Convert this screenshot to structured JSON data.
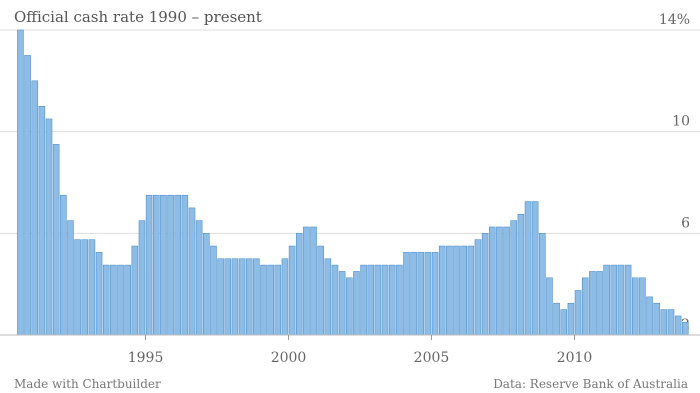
{
  "chart_data": {
    "type": "bar",
    "title": "Official cash rate 1990 – present",
    "credit": "Made with Chartbuilder",
    "source": "Data: Reserve Bank of Australia",
    "color": "#8dbde6",
    "grid": true,
    "x": [
      1990.5,
      1990.75,
      1991,
      1991.25,
      1991.5,
      1991.75,
      1992,
      1992.25,
      1992.5,
      1992.75,
      1993,
      1993.25,
      1993.5,
      1993.75,
      1994,
      1994.25,
      1994.5,
      1994.75,
      1995,
      1995.25,
      1995.5,
      1995.75,
      1996,
      1996.25,
      1996.5,
      1996.75,
      1997,
      1997.25,
      1997.5,
      1997.75,
      1998,
      1998.25,
      1998.5,
      1998.75,
      1999,
      1999.25,
      1999.5,
      1999.75,
      2000,
      2000.25,
      2000.5,
      2000.75,
      2001,
      2001.25,
      2001.5,
      2001.75,
      2002,
      2002.25,
      2002.5,
      2002.75,
      2003,
      2003.25,
      2003.5,
      2003.75,
      2004,
      2004.25,
      2004.5,
      2004.75,
      2005,
      2005.25,
      2005.5,
      2005.75,
      2006,
      2006.25,
      2006.5,
      2006.75,
      2007,
      2007.25,
      2007.5,
      2007.75,
      2008,
      2008.25,
      2008.5,
      2008.75,
      2009,
      2009.25,
      2009.5,
      2009.75,
      2010,
      2010.25,
      2010.5,
      2010.75,
      2011,
      2011.25,
      2011.5,
      2011.75,
      2012,
      2012.25,
      2012.5,
      2012.75,
      2013,
      2013.25,
      2013.5,
      2013.75
    ],
    "values": [
      14,
      13,
      12,
      11,
      10.5,
      9.5,
      7.5,
      6.5,
      5.75,
      5.75,
      5.75,
      5.25,
      4.75,
      4.75,
      4.75,
      4.75,
      5.5,
      6.5,
      7.5,
      7.5,
      7.5,
      7.5,
      7.5,
      7.5,
      7,
      6.5,
      6,
      5.5,
      5,
      5,
      5,
      5,
      5,
      5,
      4.75,
      4.75,
      4.75,
      5,
      5.5,
      6,
      6.25,
      6.25,
      5.5,
      5,
      4.75,
      4.5,
      4.25,
      4.5,
      4.75,
      4.75,
      4.75,
      4.75,
      4.75,
      4.75,
      5.25,
      5.25,
      5.25,
      5.25,
      5.25,
      5.5,
      5.5,
      5.5,
      5.5,
      5.5,
      5.75,
      6,
      6.25,
      6.25,
      6.25,
      6.5,
      6.75,
      7.25,
      7.25,
      6,
      4.25,
      3.25,
      3,
      3.25,
      3.75,
      4.25,
      4.5,
      4.5,
      4.75,
      4.75,
      4.75,
      4.75,
      4.25,
      4.25,
      3.5,
      3.25,
      3,
      3,
      2.75,
      2.5
    ],
    "xlim": [
      1990.4,
      2013.9
    ],
    "xticks": [
      1995,
      2000,
      2005,
      2010
    ],
    "ylim": [
      2,
      14
    ],
    "yticks": [
      2,
      6,
      10,
      {
        "value": 14,
        "label": "14%"
      }
    ]
  }
}
